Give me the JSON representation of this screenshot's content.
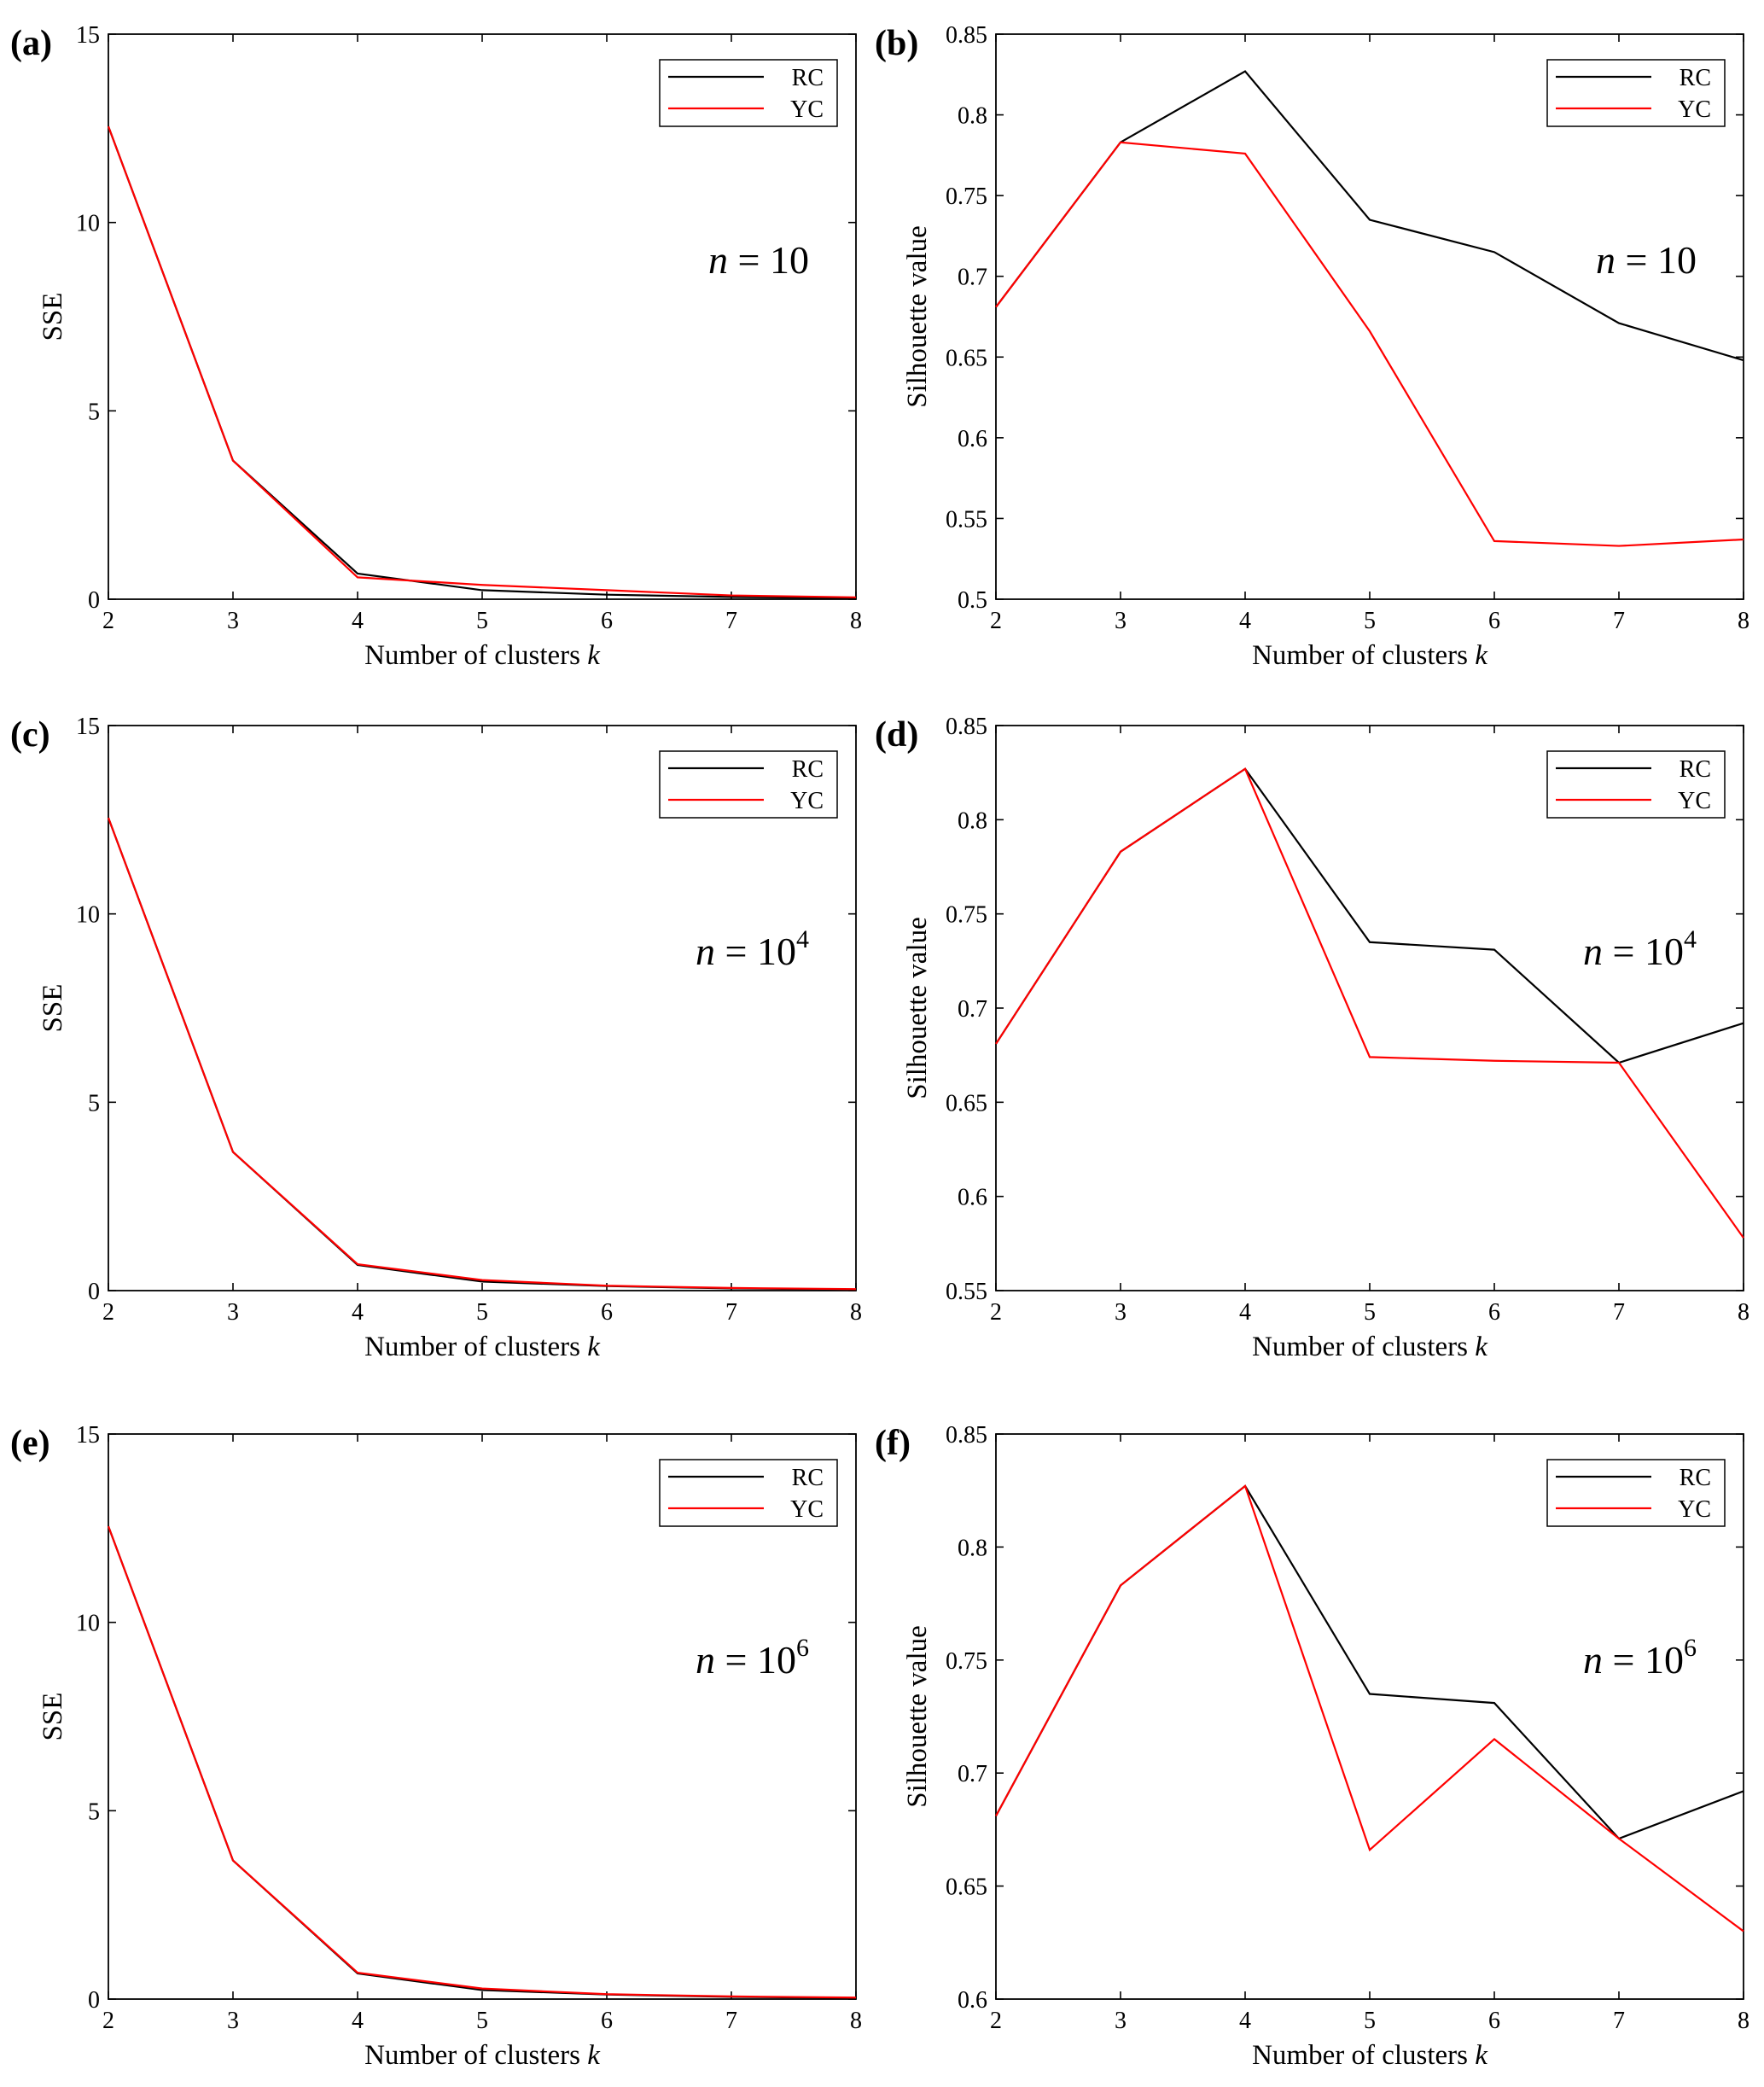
{
  "chart_data": [
    {
      "panel": "(a)",
      "type": "line",
      "x": [
        2,
        3,
        4,
        5,
        6,
        7,
        8
      ],
      "xlim": [
        2,
        8
      ],
      "ylim": [
        0,
        15
      ],
      "xticks": [
        "2",
        "3",
        "4",
        "5",
        "6",
        "7",
        "8"
      ],
      "yticks": [
        "0",
        "5",
        "10",
        "15"
      ],
      "xlabel": "Number of clusters",
      "xlabel_var": "k",
      "ylabel": "SSE",
      "annotation": {
        "var": "n",
        "eq": " = ",
        "base": "10",
        "sup": ""
      },
      "series": [
        {
          "name": "RC",
          "color": "#000000",
          "values": [
            12.55,
            3.68,
            0.68,
            0.24,
            0.12,
            0.06,
            0.03
          ]
        },
        {
          "name": "YC",
          "color": "#ff0000",
          "values": [
            12.55,
            3.68,
            0.58,
            0.38,
            0.24,
            0.1,
            0.05
          ]
        }
      ]
    },
    {
      "panel": "(b)",
      "type": "line",
      "x": [
        2,
        3,
        4,
        5,
        6,
        7,
        8
      ],
      "xlim": [
        2,
        8
      ],
      "ylim": [
        0.5,
        0.85
      ],
      "xticks": [
        "2",
        "3",
        "4",
        "5",
        "6",
        "7",
        "8"
      ],
      "yticks": [
        "0.5",
        "0.55",
        "0.6",
        "0.65",
        "0.7",
        "0.75",
        "0.8",
        "0.85"
      ],
      "xlabel": "Number of clusters",
      "xlabel_var": "k",
      "ylabel": "Silhouette value",
      "annotation": {
        "var": "n",
        "eq": " = ",
        "base": "10",
        "sup": ""
      },
      "series": [
        {
          "name": "RC",
          "color": "#000000",
          "values": [
            0.681,
            0.783,
            0.827,
            0.735,
            0.715,
            0.671,
            0.648
          ]
        },
        {
          "name": "YC",
          "color": "#ff0000",
          "values": [
            0.681,
            0.783,
            0.776,
            0.666,
            0.536,
            0.533,
            0.537
          ]
        }
      ]
    },
    {
      "panel": "(c)",
      "type": "line",
      "x": [
        2,
        3,
        4,
        5,
        6,
        7,
        8
      ],
      "xlim": [
        2,
        8
      ],
      "ylim": [
        0,
        15
      ],
      "xticks": [
        "2",
        "3",
        "4",
        "5",
        "6",
        "7",
        "8"
      ],
      "yticks": [
        "0",
        "5",
        "10",
        "15"
      ],
      "xlabel": "Number of clusters",
      "xlabel_var": "k",
      "ylabel": "SSE",
      "annotation": {
        "var": "n",
        "eq": " = ",
        "base": "10",
        "sup": "4"
      },
      "series": [
        {
          "name": "RC",
          "color": "#000000",
          "values": [
            12.55,
            3.68,
            0.68,
            0.24,
            0.12,
            0.06,
            0.03
          ]
        },
        {
          "name": "YC",
          "color": "#ff0000",
          "values": [
            12.55,
            3.68,
            0.7,
            0.28,
            0.13,
            0.07,
            0.04
          ]
        }
      ]
    },
    {
      "panel": "(d)",
      "type": "line",
      "x": [
        2,
        3,
        4,
        5,
        6,
        7,
        8
      ],
      "xlim": [
        2,
        8
      ],
      "ylim": [
        0.55,
        0.85
      ],
      "xticks": [
        "2",
        "3",
        "4",
        "5",
        "6",
        "7",
        "8"
      ],
      "yticks": [
        "0.55",
        "0.6",
        "0.65",
        "0.7",
        "0.75",
        "0.8",
        "0.85"
      ],
      "xlabel": "Number of clusters",
      "xlabel_var": "k",
      "ylabel": "Silhouette value",
      "annotation": {
        "var": "n",
        "eq": " = ",
        "base": "10",
        "sup": "4"
      },
      "series": [
        {
          "name": "RC",
          "color": "#000000",
          "values": [
            0.681,
            0.783,
            0.827,
            0.735,
            0.731,
            0.671,
            0.692
          ]
        },
        {
          "name": "YC",
          "color": "#ff0000",
          "values": [
            0.681,
            0.783,
            0.827,
            0.674,
            0.672,
            0.671,
            0.578
          ]
        }
      ]
    },
    {
      "panel": "(e)",
      "type": "line",
      "x": [
        2,
        3,
        4,
        5,
        6,
        7,
        8
      ],
      "xlim": [
        2,
        8
      ],
      "ylim": [
        0,
        15
      ],
      "xticks": [
        "2",
        "3",
        "4",
        "5",
        "6",
        "7",
        "8"
      ],
      "yticks": [
        "0",
        "5",
        "10",
        "15"
      ],
      "xlabel": "Number of clusters",
      "xlabel_var": "k",
      "ylabel": "SSE",
      "annotation": {
        "var": "n",
        "eq": " = ",
        "base": "10",
        "sup": "6"
      },
      "series": [
        {
          "name": "RC",
          "color": "#000000",
          "values": [
            12.55,
            3.68,
            0.68,
            0.24,
            0.12,
            0.06,
            0.03
          ]
        },
        {
          "name": "YC",
          "color": "#ff0000",
          "values": [
            12.55,
            3.68,
            0.7,
            0.28,
            0.13,
            0.07,
            0.04
          ]
        }
      ]
    },
    {
      "panel": "(f)",
      "type": "line",
      "x": [
        2,
        3,
        4,
        5,
        6,
        7,
        8
      ],
      "xlim": [
        2,
        8
      ],
      "ylim": [
        0.6,
        0.85
      ],
      "xticks": [
        "2",
        "3",
        "4",
        "5",
        "6",
        "7",
        "8"
      ],
      "yticks": [
        "0.6",
        "0.65",
        "0.7",
        "0.75",
        "0.8",
        "0.85"
      ],
      "xlabel": "Number of clusters",
      "xlabel_var": "k",
      "ylabel": "Silhouette value",
      "annotation": {
        "var": "n",
        "eq": " = ",
        "base": "10",
        "sup": "6"
      },
      "series": [
        {
          "name": "RC",
          "color": "#000000",
          "values": [
            0.681,
            0.783,
            0.827,
            0.735,
            0.731,
            0.671,
            0.692
          ]
        },
        {
          "name": "YC",
          "color": "#ff0000",
          "values": [
            0.681,
            0.783,
            0.827,
            0.666,
            0.715,
            0.671,
            0.63
          ]
        }
      ]
    }
  ]
}
